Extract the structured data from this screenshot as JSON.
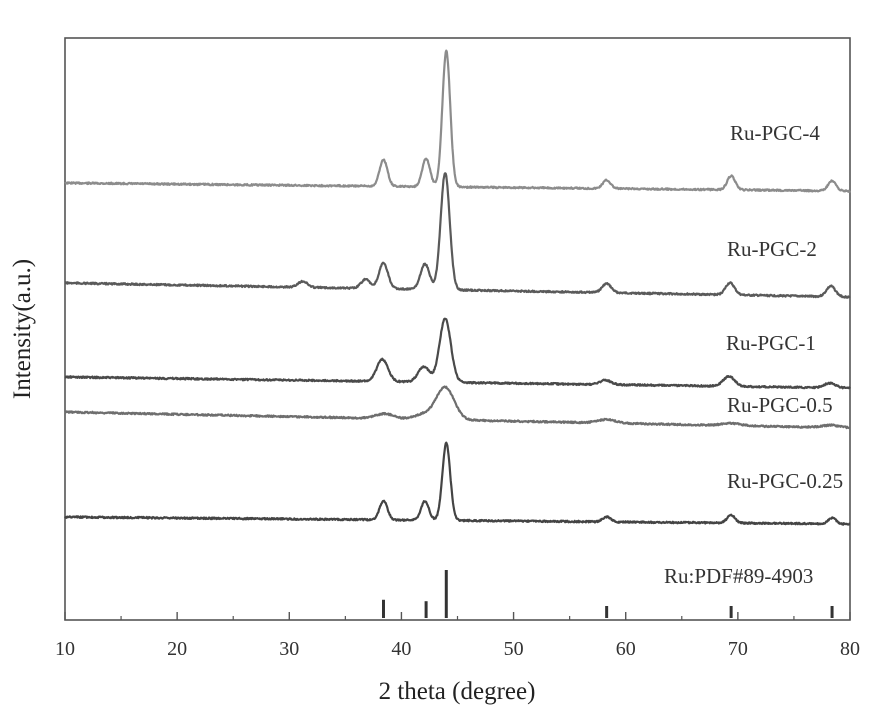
{
  "chart_data": {
    "type": "line",
    "xlabel": "2 theta (degree)",
    "ylabel": "Intensity(a.u.)",
    "xlim": [
      10,
      80
    ],
    "x_ticks": [
      10,
      20,
      30,
      40,
      50,
      60,
      70,
      80
    ],
    "grid": false,
    "y_scale": "arbitrary units, vertically stacked patterns",
    "series": [
      {
        "name": "Ru-PGC-4",
        "color": "#8c8c8c",
        "peaks": [
          {
            "x": 38.4,
            "h": 0.19
          },
          {
            "x": 42.2,
            "h": 0.2
          },
          {
            "x": 44.0,
            "h": 0.97
          },
          {
            "x": 58.3,
            "h": 0.06
          },
          {
            "x": 69.4,
            "h": 0.1
          },
          {
            "x": 78.4,
            "h": 0.07
          }
        ]
      },
      {
        "name": "Ru-PGC-2",
        "color": "#5a5a5a",
        "peaks": [
          {
            "x": 31.2,
            "h": 0.04
          },
          {
            "x": 36.8,
            "h": 0.06
          },
          {
            "x": 38.4,
            "h": 0.17
          },
          {
            "x": 42.1,
            "h": 0.17
          },
          {
            "x": 43.9,
            "h": 0.78
          },
          {
            "x": 58.3,
            "h": 0.06
          },
          {
            "x": 69.3,
            "h": 0.08
          },
          {
            "x": 78.3,
            "h": 0.07
          }
        ]
      },
      {
        "name": "Ru-PGC-1",
        "color": "#4a4a4a",
        "peaks": [
          {
            "x": 38.3,
            "h": 0.2
          },
          {
            "x": 42.0,
            "h": 0.14
          },
          {
            "x": 43.9,
            "h": 0.58
          },
          {
            "x": 58.2,
            "h": 0.04
          },
          {
            "x": 69.2,
            "h": 0.09
          },
          {
            "x": 78.2,
            "h": 0.04
          }
        ]
      },
      {
        "name": "Ru-PGC-0.5",
        "color": "#6e6e6e",
        "peaks": [
          {
            "x": 38.5,
            "h": 0.04
          },
          {
            "x": 42.0,
            "h": 0.04
          },
          {
            "x": 43.9,
            "h": 0.27
          },
          {
            "x": 58.3,
            "h": 0.03
          },
          {
            "x": 69.4,
            "h": 0.02
          },
          {
            "x": 78.3,
            "h": 0.02
          }
        ]
      },
      {
        "name": "Ru-PGC-0.25",
        "color": "#444444",
        "peaks": [
          {
            "x": 38.4,
            "h": 0.19
          },
          {
            "x": 42.1,
            "h": 0.19
          },
          {
            "x": 44.0,
            "h": 0.77
          },
          {
            "x": 58.3,
            "h": 0.05
          },
          {
            "x": 69.4,
            "h": 0.08
          },
          {
            "x": 78.4,
            "h": 0.06
          }
        ]
      }
    ],
    "reference": {
      "name": "Ru:PDF#89-4903",
      "color": "#333333",
      "lines": [
        {
          "x": 38.4,
          "h": 0.38
        },
        {
          "x": 42.2,
          "h": 0.35
        },
        {
          "x": 44.0,
          "h": 1.0
        },
        {
          "x": 58.3,
          "h": 0.25
        },
        {
          "x": 69.4,
          "h": 0.25
        },
        {
          "x": 78.4,
          "h": 0.25
        }
      ]
    }
  }
}
